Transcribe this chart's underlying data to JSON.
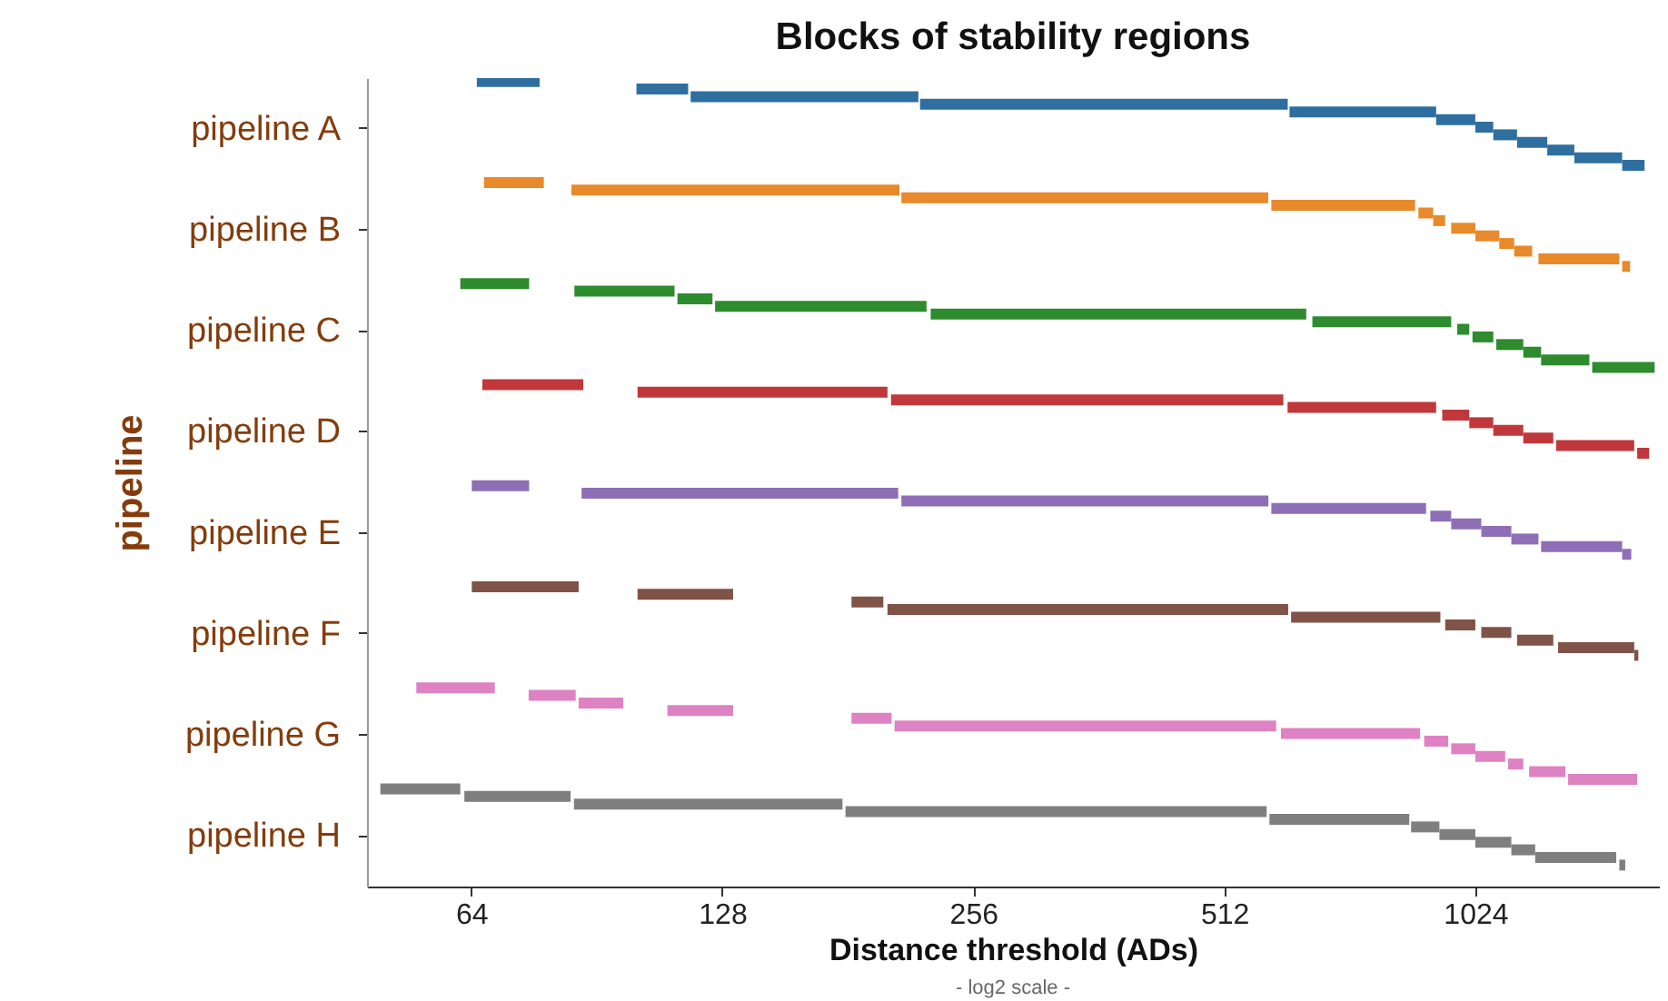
{
  "chart_data": {
    "type": "bar",
    "orientation": "horizontal",
    "title": "Blocks of stability regions",
    "xlabel": "Distance threshold (ADs)",
    "ylabel": "pipeline",
    "annotations": [
      "- log2 scale -"
    ],
    "log": "x",
    "grid": false,
    "xlim": [
      48,
      1700
    ],
    "xticks": [
      64,
      128,
      256,
      512,
      1024
    ],
    "categories": [
      "pipeline A",
      "pipeline B",
      "pipeline C",
      "pipeline D",
      "pipeline E",
      "pipeline F",
      "pipeline G",
      "pipeline H"
    ],
    "series": [
      {
        "colors": [
          "#2f6f9f",
          "#e8892b",
          "#2e8b2e",
          "#c0383b",
          "#8e6fb5",
          "#7f5348",
          "#de82c3",
          "#7f7f7f"
        ],
        "base": [
          65,
          66.3,
          62.1,
          66,
          64.1,
          64.1,
          55,
          49.8
        ],
        "values": [
          12.3,
          11.9,
          13,
          21.2,
          11,
          22,
          13.3,
          12.3
        ]
      },
      {
        "colors": [
          "#2f6f9f",
          "#e8892b",
          "#2e8b2e",
          "#c0383b",
          "#8e6fb5",
          "#7f5348",
          "#de82c3",
          "#7f7f7f"
        ],
        "base": [
          101,
          84.4,
          85.1,
          101.3,
          86.8,
          101.3,
          75,
          62.8
        ],
        "values": [
          15.5,
          124.4,
          27.1,
          100.7,
          121.3,
          30.6,
          10.4,
          21.4
        ]
      },
      {
        "colors": [
          "#2f6f9f",
          "#e8892b",
          "#2e8b2e",
          "#c0383b",
          "#8e6fb5",
          "#7f5348",
          "#de82c3",
          "#7f7f7f"
        ],
        "base": [
          117.3,
          209.9,
          113.1,
          204,
          209.9,
          182.9,
          86.1,
          85
        ],
        "values": [
          102.7,
          368.1,
          11.5,
          398.6,
          368.4,
          16.8,
          11.3,
          93.4
        ]
      },
      {
        "colors": [
          "#2f6f9f",
          "#e8892b",
          "#2e8b2e",
          "#c0383b",
          "#8e6fb5",
          "#7f5348",
          "#de82c3",
          "#7f7f7f"
        ],
        "base": [
          221,
          583,
          125.5,
          609.7,
          583,
          202,
          110,
          179.9
        ],
        "values": [
          389,
          284,
          99.5,
          309.3,
          310.8,
          408.8,
          21.9,
          395.6
        ]
      },
      {
        "colors": [
          "#2f6f9f",
          "#e8892b",
          "#2e8b2e",
          "#c0383b",
          "#8e6fb5",
          "#7f5348",
          "#de82c3",
          "#7f7f7f"
        ],
        "base": [
          613,
          875,
          227.6,
          934.5,
          904.4,
          615.7,
          182.9,
          580
        ],
        "values": [
          306,
          36.5,
          414.4,
          72.5,
          53.6,
          314.1,
          21.4,
          273.3
        ]
      },
      {
        "colors": [
          "#2f6f9f",
          "#e8892b",
          "#2e8b2e",
          "#c0383b",
          "#8e6fb5",
          "#7f5348",
          "#de82c3",
          "#7f7f7f"
        ],
        "base": [
          919,
          911.5,
          653,
          1007,
          958,
          942.3,
          206,
          857.6
        ],
        "values": [
          105,
          30.5,
          305,
          69,
          83,
          81.7,
          384.8,
          69.7
        ]
      },
      {
        "colors": [
          "#2f6f9f",
          "#e8892b",
          "#2e8b2e",
          "#c0383b",
          "#8e6fb5",
          "#7f5348",
          "#de82c3",
          "#7f7f7f"
        ],
        "base": [
          1024,
          958,
          974,
          1076,
          1041,
          1041,
          598.7,
          927.3
        ],
        "values": [
          52,
          66,
          33,
          93,
          90,
          90,
          280.4,
          96.7
        ]
      },
      {
        "colors": [
          "#2f6f9f",
          "#e8892b",
          "#2e8b2e",
          "#c0383b",
          "#8e6fb5",
          "#7f5348",
          "#de82c3",
          "#7f7f7f"
        ],
        "base": [
          1076,
          1024,
          1016,
          1169,
          1131,
          1149,
          889.1,
          1024
        ],
        "values": [
          73,
          70,
          60,
          101,
          88,
          121,
          61.1,
          107
        ]
      },
      {
        "colors": [
          "#2f6f9f",
          "#e8892b",
          "#2e8b2e",
          "#c0383b",
          "#8e6fb5",
          "#7f5348",
          "#de82c3",
          "#7f7f7f"
        ],
        "base": [
          1149,
          1094,
          1085,
          1280,
          1228,
          1287,
          958,
          1131
        ],
        "values": [
          100,
          46,
          84,
          308,
          308,
          301,
          66,
          77
        ]
      },
      {
        "colors": [
          "#2f6f9f",
          "#e8892b",
          "#2e8b2e",
          "#c0383b",
          "#8e6fb5",
          "#7f5348",
          "#de82c3",
          "#7f7f7f"
        ],
        "base": [
          1249,
          1140,
          1169,
          1601,
          1536,
          1588,
          1024,
          1208
        ],
        "values": [
          97,
          58,
          59,
          54,
          39,
          18,
          88,
          303
        ]
      },
      {
        "colors": [
          "#2f6f9f",
          "#e8892b",
          "#2e8b2e",
          "#c0383b",
          "#8e6fb5",
          "#7f5348",
          "#de82c3",
          "#7f7f7f"
        ],
        "base": [
          1346,
          1219,
          1228,
          null,
          null,
          null,
          1121,
          1524
        ],
        "values": [
          190,
          305,
          175,
          null,
          null,
          null,
          48,
          25
        ]
      },
      {
        "colors": [
          "#2f6f9f",
          "#e8892b",
          "#2e8b2e",
          "#c0383b",
          "#8e6fb5",
          "#7f5348",
          "#de82c3",
          "#7f7f7f"
        ],
        "base": [
          1536,
          1536,
          1414,
          null,
          null,
          null,
          1188,
          null
        ],
        "values": [
          98,
          34,
          266,
          null,
          null,
          null,
          125,
          null
        ]
      },
      {
        "colors": [
          "#2f6f9f",
          "#e8892b",
          "#2e8b2e",
          "#c0383b",
          "#8e6fb5",
          "#7f5348",
          "#de82c3",
          "#7f7f7f"
        ],
        "base": [
          null,
          null,
          null,
          null,
          null,
          null,
          1323,
          null
        ],
        "values": [
          null,
          null,
          null,
          null,
          null,
          null,
          278,
          null
        ]
      }
    ]
  }
}
